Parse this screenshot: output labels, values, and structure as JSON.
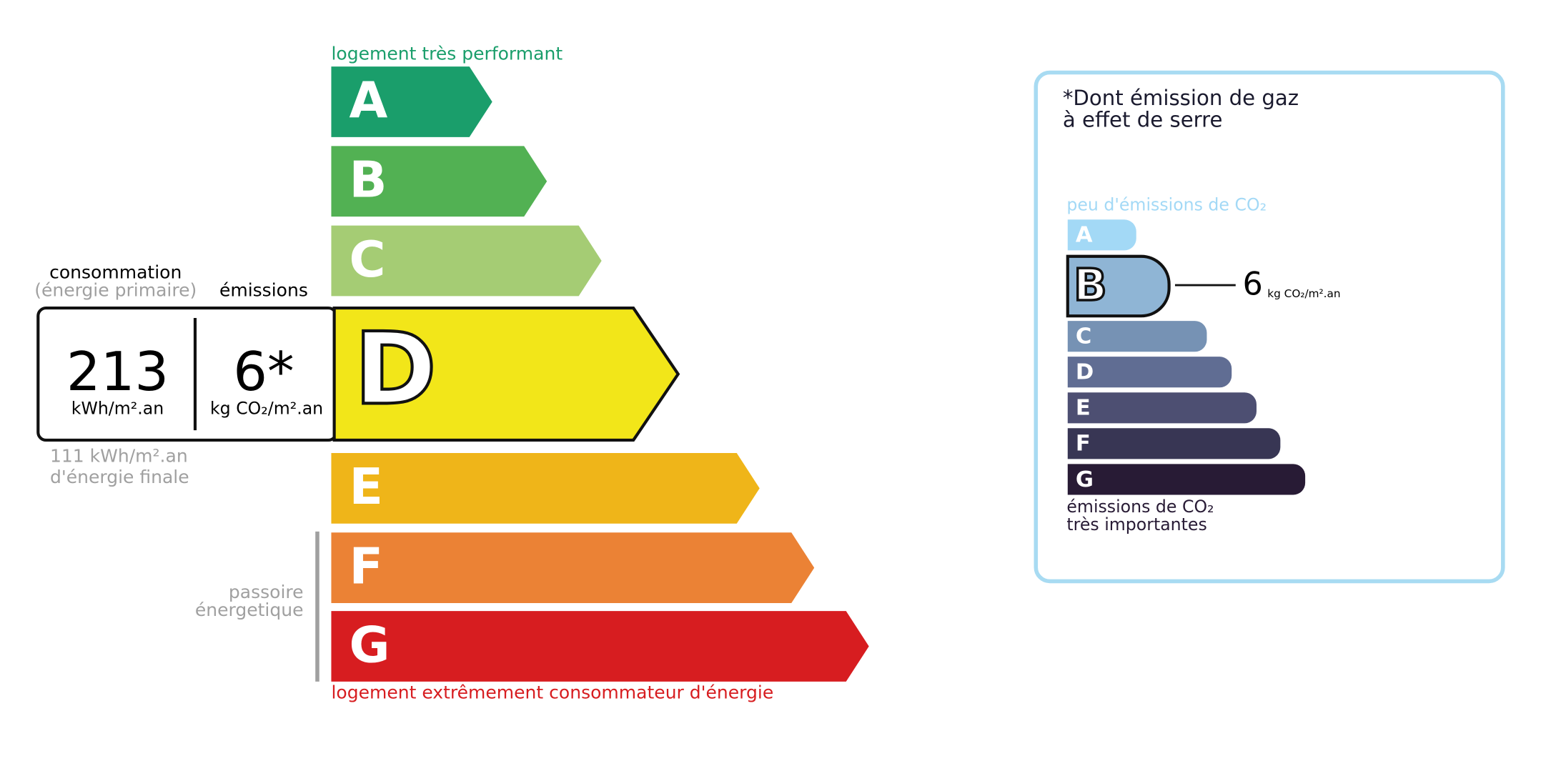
{
  "energy": {
    "top_label": "logement très performant",
    "bottom_label": "logement extrêmement consommateur d'énergie",
    "classes": [
      "A",
      "B",
      "C",
      "D",
      "E",
      "F",
      "G"
    ],
    "current": "D",
    "consumption_label": "consommation",
    "consumption_sub": "(énergie primaire)",
    "emissions_label": "émissions",
    "consumption_value": "213",
    "consumption_unit": "kWh/m².an",
    "emissions_value": "6*",
    "emissions_unit": "kg CO₂/m².an",
    "final_energy": [
      "111 kWh/m².an",
      "d'énergie finale"
    ],
    "passoire": [
      "passoire",
      "énergetique"
    ]
  },
  "ges": {
    "title": [
      "*Dont émission de gaz",
      "à effet de serre"
    ],
    "top_label": "peu d'émissions de CO₂",
    "classes": [
      "A",
      "B",
      "C",
      "D",
      "E",
      "F",
      "G"
    ],
    "current": "B",
    "value": "6",
    "unit": "kg CO₂/m².an",
    "bottom_label": [
      "émissions de CO₂",
      "très importantes"
    ]
  }
}
